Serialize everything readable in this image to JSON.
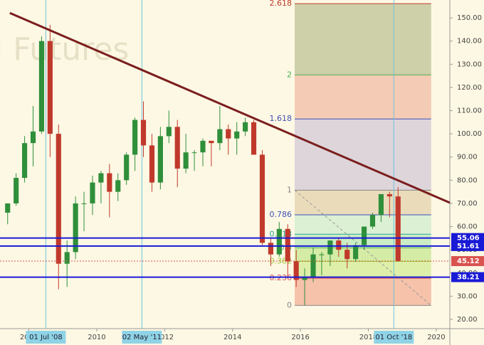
{
  "chart_data": {
    "type": "candlestick",
    "watermark": "l Futures",
    "x": [
      2007.375,
      2007.625,
      2007.875,
      2008.125,
      2008.375,
      2008.625,
      2008.875,
      2009.125,
      2009.375,
      2009.625,
      2009.875,
      2010.125,
      2010.375,
      2010.625,
      2010.875,
      2011.125,
      2011.375,
      2011.625,
      2011.875,
      2012.125,
      2012.375,
      2012.625,
      2012.875,
      2013.125,
      2013.375,
      2013.625,
      2013.875,
      2014.125,
      2014.375,
      2014.625,
      2014.875,
      2015.125,
      2015.375,
      2015.625,
      2015.875,
      2016.125,
      2016.375,
      2016.625,
      2016.875,
      2017.125,
      2017.375,
      2017.625,
      2017.875,
      2018.125,
      2018.375,
      2018.625,
      2018.875
    ],
    "open": [
      66,
      70,
      81,
      96,
      101,
      140,
      100,
      44,
      49,
      70,
      70,
      79,
      83,
      75,
      80,
      91,
      106,
      95,
      79,
      99,
      103,
      85,
      92,
      92,
      97,
      96,
      102,
      98,
      101,
      105,
      91,
      53,
      48,
      59,
      45,
      37,
      38,
      48,
      48,
      54,
      50,
      46,
      52,
      60,
      65,
      74,
      73
    ],
    "high": [
      70,
      83,
      99,
      112,
      142,
      147,
      104,
      54,
      73,
      75,
      82,
      84,
      87,
      83,
      92,
      107,
      114,
      100,
      103,
      110,
      106,
      100,
      93,
      98,
      97,
      112,
      104,
      105,
      107,
      106,
      93,
      55,
      62,
      61,
      50,
      42,
      51,
      49,
      54,
      55,
      53,
      53,
      60,
      66,
      73,
      75,
      77
    ],
    "low": [
      61,
      69,
      79,
      86,
      100,
      90,
      33,
      34,
      46,
      58,
      65,
      70,
      64,
      71,
      78,
      84,
      90,
      75,
      76,
      96,
      77,
      83,
      84,
      86,
      86,
      93,
      91,
      91,
      99,
      91,
      52,
      43,
      47,
      38,
      34,
      26,
      36,
      39,
      43,
      47,
      42,
      45,
      50,
      59,
      62,
      64,
      45
    ],
    "close": [
      70,
      81,
      96,
      101,
      140,
      100,
      44,
      49,
      70,
      70,
      79,
      83,
      75,
      80,
      91,
      106,
      95,
      79,
      99,
      103,
      85,
      92,
      92,
      97,
      96,
      102,
      98,
      101,
      105,
      91,
      53,
      48,
      59,
      45,
      37,
      38,
      48,
      48,
      54,
      50,
      46,
      52,
      60,
      65,
      74,
      73,
      45.12
    ],
    "up_color": "#2f8f3a",
    "down_color": "#c0392b",
    "xlim": [
      2007.15,
      2020.4
    ],
    "ylim": [
      16,
      157.7
    ],
    "xticks": [
      2008,
      2010,
      2012,
      2014,
      2016,
      2018,
      2020
    ],
    "yticks": [
      {
        "value": 20,
        "label": "20.00"
      },
      {
        "value": 30,
        "label": "30.00"
      },
      {
        "value": 40,
        "label": "40.00"
      },
      {
        "value": 50,
        "label": "50.00"
      },
      {
        "value": 60,
        "label": "60.00"
      },
      {
        "value": 70,
        "label": "70.00"
      },
      {
        "value": 80,
        "label": "80.00"
      },
      {
        "value": 90,
        "label": "90.00"
      },
      {
        "value": 100,
        "label": "100.00"
      },
      {
        "value": 110,
        "label": "110.00"
      },
      {
        "value": 120,
        "label": "120.00"
      },
      {
        "value": 130,
        "label": "130.00"
      },
      {
        "value": 140,
        "label": "140.00"
      },
      {
        "value": 150,
        "label": "150.00"
      }
    ],
    "trendline": {
      "x": [
        2007.44,
        2020.4
      ],
      "y": [
        152.1,
        70.3
      ],
      "color": "#7b1e1e"
    },
    "fib": {
      "x": [
        2015.83,
        2019.85
      ],
      "low": 26,
      "high": 75.7,
      "levels": [
        {
          "level": 0,
          "color": "#888888"
        },
        {
          "level": 0.236,
          "color": "#d9534f"
        },
        {
          "level": 0.382,
          "color": "#9acd32"
        },
        {
          "level": 0.5,
          "color": "#4caf50"
        },
        {
          "level": 0.618,
          "color": "#26a69a"
        },
        {
          "level": 0.786,
          "color": "#3f51b5"
        },
        {
          "level": 1,
          "color": "#888888"
        },
        {
          "level": 1.618,
          "color": "#3f51b5"
        },
        {
          "level": 2,
          "color": "#4caf50"
        },
        {
          "level": 2.618,
          "color": "#c0392b"
        }
      ],
      "fills": [
        "#f4b9a0",
        "#d8eda0",
        "#cdea9a",
        "#c2ebc0",
        "#d6efd0",
        "#e6d7b4",
        "#d7cfd8",
        "#f2c3ac",
        "#c5c9a0"
      ]
    },
    "price_lines": [
      {
        "value": 55.06,
        "color": "#1a1ad6",
        "dashed": false
      },
      {
        "value": 51.61,
        "color": "#1a1ad6",
        "dashed": false
      },
      {
        "value": 45.12,
        "color": "#d9534f",
        "dashed": true
      },
      {
        "value": 38.21,
        "color": "#1a1ad6",
        "dashed": false
      }
    ],
    "date_markers": [
      {
        "label": "01 Jul '08",
        "x": 2008.5
      },
      {
        "label": "02 May '11",
        "x": 2011.33
      },
      {
        "label": "01 Oct '18",
        "x": 2018.75
      }
    ]
  }
}
